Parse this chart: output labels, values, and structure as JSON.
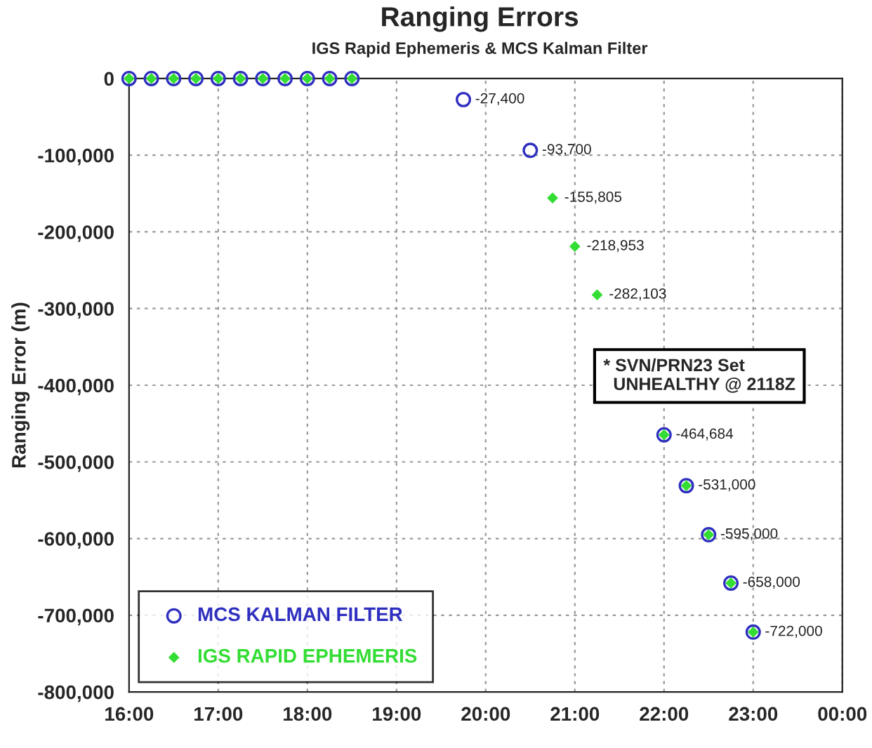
{
  "chart_data": {
    "type": "scatter",
    "title": "Ranging Errors",
    "subtitle": "IGS Rapid Ephemeris & MCS Kalman Filter",
    "ylabel": "Ranging Error (m)",
    "series": [
      {
        "name": "MCS KALMAN FILTER",
        "color": "#2f2fc0",
        "marker": "circle",
        "x": [
          16,
          16.25,
          16.5,
          16.75,
          17,
          17.25,
          17.5,
          17.75,
          18,
          18.25,
          18.5,
          19.75,
          20.5,
          22,
          22.25,
          22.5,
          22.75,
          23
        ],
        "values": [
          0,
          0,
          0,
          0,
          0,
          0,
          0,
          0,
          0,
          0,
          0,
          -27400,
          -93700,
          -464684,
          -531000,
          -595000,
          -658000,
          -722000
        ],
        "value_labels": [
          null,
          null,
          null,
          null,
          null,
          null,
          null,
          null,
          null,
          null,
          null,
          "-27,400",
          "-93,700",
          "-464,684",
          "-531,000",
          "-595,000",
          "-658,000",
          "-722,000"
        ]
      },
      {
        "name": "IGS RAPID EPHEMERIS",
        "color": "#33dd33",
        "marker": "diamond",
        "x": [
          16,
          16.25,
          16.5,
          16.75,
          17,
          17.25,
          17.5,
          17.75,
          18,
          18.25,
          18.5,
          20.75,
          21,
          21.25,
          22,
          22.25,
          22.5,
          22.75,
          23
        ],
        "values": [
          0,
          0,
          0,
          0,
          0,
          0,
          0,
          0,
          0,
          0,
          0,
          -155805,
          -218953,
          -282103,
          -464684,
          -531000,
          -595000,
          -658000,
          -722000
        ],
        "value_labels": [
          null,
          null,
          null,
          null,
          null,
          null,
          null,
          null,
          null,
          null,
          null,
          "-155,805",
          "-218,953",
          "-282,103",
          null,
          null,
          null,
          null,
          null
        ]
      }
    ],
    "xlim": [
      16,
      24
    ],
    "xticks": [
      {
        "value": 16,
        "label": "16:00"
      },
      {
        "value": 17,
        "label": "17:00"
      },
      {
        "value": 18,
        "label": "18:00"
      },
      {
        "value": 19,
        "label": "19:00"
      },
      {
        "value": 20,
        "label": "20:00"
      },
      {
        "value": 21,
        "label": "21:00"
      },
      {
        "value": 22,
        "label": "22:00"
      },
      {
        "value": 23,
        "label": "23:00"
      },
      {
        "value": 24,
        "label": "00:00"
      }
    ],
    "ylim": [
      -800000,
      0
    ],
    "yticks": [
      {
        "value": -800000,
        "label": "-800,000"
      },
      {
        "value": -700000,
        "label": "-700,000"
      },
      {
        "value": -600000,
        "label": "-600,000"
      },
      {
        "value": -500000,
        "label": "-500,000"
      },
      {
        "value": -400000,
        "label": "-400,000"
      },
      {
        "value": -300000,
        "label": "-300,000"
      },
      {
        "value": -200000,
        "label": "-200,000"
      },
      {
        "value": -100000,
        "label": "-100,000"
      },
      0
    ],
    "annotations": [
      "* SVN/PRN23 Set\n  UNHEALTHY @ 2118Z"
    ],
    "grid": true,
    "legend": "bottom left"
  }
}
